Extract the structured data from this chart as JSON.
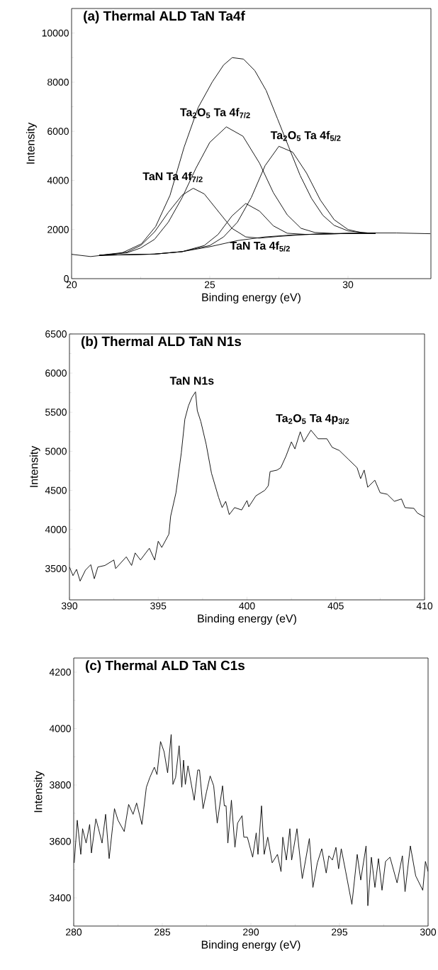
{
  "chart_data": [
    {
      "type": "line",
      "title": "(a) Thermal ALD TaN Ta4f",
      "xlabel": "Binding energy (eV)",
      "ylabel": "Intensity",
      "xlim": [
        20,
        33
      ],
      "ylim": [
        0,
        11000
      ],
      "xticks": [
        20,
        25,
        30
      ],
      "yticks": [
        0,
        2000,
        4000,
        6000,
        8000,
        10000
      ],
      "series": [
        {
          "color": "#000000",
          "x": [
            20,
            20.69,
            21.81,
            22.53,
            23.04,
            23.56,
            24.07,
            24.58,
            25.09,
            25.5,
            25.81,
            26.22,
            26.63,
            27.04,
            27.45,
            27.86,
            28.27,
            28.68,
            29.09,
            29.5,
            30.01,
            30.73,
            31.75,
            32.98
          ],
          "values": [
            990,
            900,
            1040,
            1420,
            2120,
            3390,
            5350,
            6970,
            8010,
            8700,
            9000,
            8940,
            8470,
            7660,
            6510,
            5350,
            4200,
            3270,
            2580,
            2170,
            1940,
            1860,
            1860,
            1830
          ]
        },
        {
          "color": "#000000",
          "x": [
            21,
            23,
            24,
            25,
            26,
            27,
            28,
            29,
            30,
            31
          ],
          "values": [
            950,
            1000,
            1100,
            1300,
            1550,
            1700,
            1780,
            1820,
            1840,
            1850
          ]
        },
        {
          "color": "#000000",
          "x": [
            21,
            22,
            22.5,
            23,
            23.5,
            24,
            24.4,
            24.8,
            25.3,
            25.8,
            26.3,
            26.8,
            27.5,
            28.5,
            30,
            31
          ],
          "values": [
            950,
            1080,
            1350,
            1900,
            2700,
            3400,
            3680,
            3450,
            2750,
            2050,
            1700,
            1650,
            1720,
            1800,
            1840,
            1850
          ]
        },
        {
          "color": "#000000",
          "x": [
            21,
            22,
            22.5,
            23,
            23.5,
            24,
            24.5,
            25,
            25.6,
            26.2,
            26.8,
            27.3,
            27.8,
            28.3,
            28.8,
            29.5,
            30.5,
            31
          ],
          "values": [
            950,
            1050,
            1250,
            1600,
            2300,
            3300,
            4500,
            5550,
            6180,
            5800,
            4700,
            3500,
            2600,
            2050,
            1880,
            1840,
            1850,
            1850
          ]
        },
        {
          "color": "#000000",
          "x": [
            21,
            23,
            24,
            24.8,
            25.3,
            25.8,
            26.3,
            26.8,
            27.3,
            27.8,
            28.5,
            30,
            31
          ],
          "values": [
            950,
            1000,
            1100,
            1350,
            1800,
            2550,
            3060,
            2750,
            2150,
            1850,
            1800,
            1840,
            1850
          ]
        },
        {
          "color": "#000000",
          "x": [
            21,
            23,
            24,
            25,
            25.5,
            26,
            26.5,
            27,
            27.5,
            28,
            28.5,
            29,
            29.5,
            30,
            30.5,
            31
          ],
          "values": [
            950,
            1000,
            1100,
            1350,
            1700,
            2300,
            3300,
            4600,
            5390,
            5150,
            4300,
            3200,
            2400,
            2000,
            1870,
            1850
          ]
        }
      ],
      "annotations": [
        "Ta$_{2}$O$_{5}$ Ta 4f$_{7/2}$",
        "Ta$_{2}$O$_{5}$ Ta 4f$_{5/2}$",
        "TaN Ta 4f$_{7/2}$",
        "TaN Ta 4f$_{5/2}$"
      ]
    },
    {
      "type": "line",
      "title": "(b) Thermal ALD TaN N1s",
      "xlabel": "Binding energy (eV)",
      "ylabel": "Intensity",
      "xlim": [
        390,
        410
      ],
      "ylim": [
        3100,
        6500
      ],
      "xticks": [
        390,
        395,
        400,
        405,
        410
      ],
      "yticks": [
        3500,
        4000,
        4500,
        5000,
        5500,
        6000,
        6500
      ],
      "series": [
        {
          "color": "#000000",
          "x": [
            390,
            390.2,
            390.4,
            390.6,
            390.9,
            391.2,
            391.4,
            391.6,
            392,
            392.5,
            392.6,
            393.2,
            393.5,
            393.7,
            394,
            394.5,
            394.8,
            395,
            395.2,
            395.6,
            395.7,
            396,
            396.3,
            396.5,
            396.7,
            396.9,
            397.1,
            397.2,
            397.4,
            397.7,
            398,
            398.4,
            398.6,
            398.8,
            399,
            399.3,
            399.7,
            400,
            400.1,
            400.5,
            401,
            401.2,
            401.3,
            401.7,
            401.9,
            402.2,
            402.5,
            402.7,
            403,
            403.2,
            403.6,
            404,
            404.5,
            404.8,
            405.2,
            405.7,
            406.2,
            406.4,
            406.6,
            406.8,
            407.2,
            407.5,
            407.9,
            408.3,
            408.7,
            408.9,
            409.4,
            409.6,
            410
          ],
          "values": [
            3520,
            3410,
            3490,
            3340,
            3480,
            3550,
            3370,
            3520,
            3540,
            3610,
            3500,
            3650,
            3540,
            3700,
            3610,
            3760,
            3610,
            3850,
            3770,
            3940,
            4170,
            4470,
            4980,
            5410,
            5580,
            5690,
            5760,
            5520,
            5380,
            5090,
            4720,
            4410,
            4280,
            4360,
            4190,
            4280,
            4250,
            4370,
            4290,
            4430,
            4500,
            4560,
            4740,
            4760,
            4790,
            4940,
            5120,
            5030,
            5250,
            5120,
            5270,
            5160,
            5160,
            5050,
            5010,
            4900,
            4790,
            4650,
            4760,
            4540,
            4630,
            4470,
            4450,
            4360,
            4390,
            4280,
            4270,
            4210,
            4160
          ]
        }
      ],
      "annotations": [
        "TaN N1s",
        "Ta$_{2}$O$_{5}$ Ta 4p$_{3/2}$"
      ]
    },
    {
      "type": "line",
      "title": "(c) Thermal ALD TaN C1s",
      "xlabel": "Binding energy (eV)",
      "ylabel": "Intensity",
      "xlim": [
        280,
        300
      ],
      "ylim": [
        3300,
        4250
      ],
      "xticks": [
        280,
        285,
        290,
        295,
        300
      ],
      "yticks": [
        3400,
        3600,
        3800,
        4000,
        4200
      ],
      "series": [
        {
          "color": "#000000",
          "x": [
            280.03,
            280.2,
            280.4,
            280.5,
            280.7,
            280.9,
            281.0,
            281.25,
            281.4,
            281.6,
            281.8,
            282.0,
            282.2,
            282.3,
            282.5,
            282.85,
            283.1,
            283.35,
            283.55,
            283.85,
            284.1,
            284.3,
            284.55,
            284.7,
            284.9,
            285.1,
            285.3,
            285.5,
            285.6,
            285.75,
            285.95,
            286.1,
            286.2,
            286.3,
            286.45,
            286.8,
            287.0,
            287.1,
            287.3,
            287.5,
            287.7,
            287.9,
            288.1,
            288.4,
            288.5,
            288.6,
            288.7,
            288.9,
            289.1,
            289.25,
            289.5,
            289.6,
            289.8,
            290.1,
            290.3,
            290.4,
            290.6,
            290.75,
            290.95,
            291.2,
            291.5,
            291.7,
            291.8,
            292.0,
            292.2,
            292.3,
            292.6,
            292.7,
            292.9,
            293.3,
            293.5,
            293.75,
            294.0,
            294.25,
            294.4,
            294.6,
            294.8,
            294.95,
            295.1,
            295.35,
            295.7,
            296.0,
            296.2,
            296.5,
            296.6,
            296.8,
            297.0,
            297.2,
            297.4,
            297.6,
            297.85,
            298.25,
            298.55,
            298.7,
            299.0,
            299.3,
            299.7,
            299.85,
            300.0
          ],
          "values": [
            3524,
            3675,
            3554,
            3645,
            3594,
            3660,
            3559,
            3680,
            3645,
            3594,
            3696,
            3539,
            3655,
            3716,
            3675,
            3635,
            3731,
            3696,
            3736,
            3660,
            3792,
            3827,
            3863,
            3837,
            3954,
            3918,
            3843,
            3979,
            3802,
            3827,
            3939,
            3792,
            3888,
            3802,
            3868,
            3746,
            3853,
            3853,
            3716,
            3777,
            3832,
            3797,
            3665,
            3797,
            3726,
            3726,
            3594,
            3746,
            3579,
            3665,
            3691,
            3615,
            3615,
            3544,
            3630,
            3554,
            3726,
            3554,
            3615,
            3524,
            3554,
            3493,
            3615,
            3534,
            3645,
            3534,
            3645,
            3584,
            3468,
            3610,
            3437,
            3524,
            3574,
            3488,
            3549,
            3534,
            3579,
            3503,
            3574,
            3493,
            3377,
            3554,
            3463,
            3584,
            3372,
            3544,
            3437,
            3539,
            3427,
            3529,
            3544,
            3453,
            3549,
            3422,
            3584,
            3478,
            3427,
            3529,
            3493
          ]
        }
      ]
    }
  ]
}
